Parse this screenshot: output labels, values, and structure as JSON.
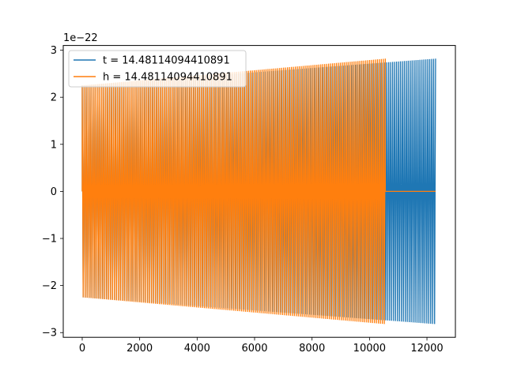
{
  "chart_data": {
    "type": "line",
    "title": "",
    "xlabel": "",
    "ylabel": "",
    "y_scale_label": "1e−22",
    "xlim": [
      -660,
      12990
    ],
    "ylim": [
      -3.1,
      3.1
    ],
    "x_ticks": [
      0,
      2000,
      4000,
      6000,
      8000,
      10000,
      12000
    ],
    "x_tick_labels": [
      "0",
      "2000",
      "4000",
      "6000",
      "8000",
      "10000",
      "12000"
    ],
    "y_ticks": [
      -3,
      -2,
      -1,
      0,
      1,
      2,
      3
    ],
    "y_tick_labels": [
      "−3",
      "−2",
      "−1",
      "0",
      "1",
      "2",
      "3"
    ],
    "grid": false,
    "legend_position": "top-left",
    "series": [
      {
        "name": "t = 14.48114094410891",
        "color": "#1f77b4",
        "kind": "oscillation",
        "x_start": 0,
        "x_end": 12300,
        "amp_start": 2.25,
        "amp_end": 2.82,
        "tail_end": 12300
      },
      {
        "name": "h = 14.48114094410891",
        "color": "#ff7f0e",
        "kind": "oscillation",
        "x_start": 0,
        "x_end": 10550,
        "amp_start": 2.25,
        "amp_end": 2.82,
        "tail_end": 12300
      }
    ]
  }
}
